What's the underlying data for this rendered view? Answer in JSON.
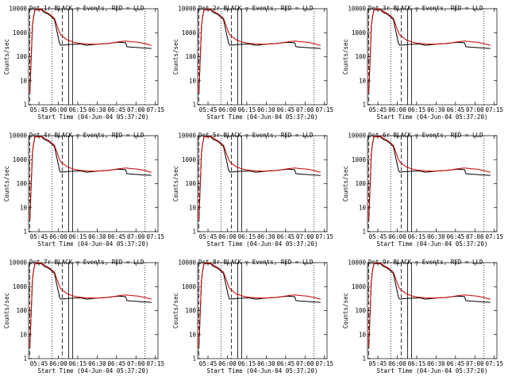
{
  "chart_data": [
    {
      "det": "Det 1r",
      "title": "Det 1r BLACK = Events, RED = LLD"
    },
    {
      "det": "Det 2r",
      "title": "Det 2r BLACK = Events, RED = LLD"
    },
    {
      "det": "Det 3r",
      "title": "Det 3r BLACK = Events, RED = LLD"
    },
    {
      "det": "Det 4r",
      "title": "Det 4r BLACK = Events, RED = LLD"
    },
    {
      "det": "Det 5r",
      "title": "Det 5r BLACK = Events, RED = LLD"
    },
    {
      "det": "Det 6r",
      "title": "Det 6r BLACK = Events, RED = LLD"
    },
    {
      "det": "Det 7r",
      "title": "Det 7r BLACK = Events, RED = LLD"
    },
    {
      "det": "Det 8r",
      "title": "Det 8r BLACK = Events, RED = LLD"
    },
    {
      "det": "Det 9r",
      "title": "Det 9r BLACK = Events, RED = LLD"
    }
  ],
  "common": {
    "type": "line",
    "ylabel": "Counts/sec",
    "xlabel": "Start Time (04-Jun-04 05:37:20)",
    "yscale": "log",
    "ylim": [
      1,
      10000
    ],
    "yticks": [
      "1",
      "10",
      "100",
      "1000",
      "10000"
    ],
    "xticks": [
      "05:45",
      "06:00",
      "06:15",
      "06:30",
      "06:45",
      "07:00",
      "07:15"
    ],
    "xlim_minutes_after_start": [
      0,
      100
    ],
    "colors": {
      "events": "#000000",
      "lld": "#cc0000"
    },
    "series": [
      {
        "name": "Events",
        "color": "#000000",
        "x_minutes": [
          1,
          3,
          4,
          5,
          10,
          12,
          15,
          17,
          20,
          24,
          25,
          30,
          35,
          40,
          45,
          50,
          55,
          60,
          65,
          70,
          75,
          76,
          80,
          85,
          90,
          95
        ],
        "y": [
          3,
          2000,
          5000,
          9000,
          9000,
          7000,
          6000,
          5000,
          3500,
          350,
          300,
          320,
          330,
          340,
          300,
          320,
          340,
          350,
          380,
          400,
          380,
          260,
          250,
          240,
          230,
          220
        ]
      },
      {
        "name": "LLD",
        "color": "#cc0000",
        "x_minutes": [
          1,
          3,
          4,
          5,
          10,
          12,
          15,
          17,
          20,
          24,
          25,
          30,
          35,
          40,
          45,
          50,
          55,
          60,
          65,
          70,
          75,
          80,
          85,
          90,
          95
        ],
        "y": [
          3,
          2000,
          5000,
          9000,
          9500,
          8000,
          6500,
          5500,
          4000,
          1000,
          800,
          500,
          400,
          360,
          340,
          330,
          340,
          350,
          380,
          420,
          450,
          420,
          400,
          350,
          300
        ]
      }
    ],
    "vertical_markers": [
      {
        "x_minutes": 1,
        "style": "dashed"
      },
      {
        "x_minutes": 18,
        "style": "dotted"
      },
      {
        "x_minutes": 26,
        "style": "dashed"
      },
      {
        "x_minutes": 31,
        "style": "solid"
      },
      {
        "x_minutes": 34,
        "style": "solid"
      },
      {
        "x_minutes": 90,
        "style": "dotted"
      }
    ]
  }
}
